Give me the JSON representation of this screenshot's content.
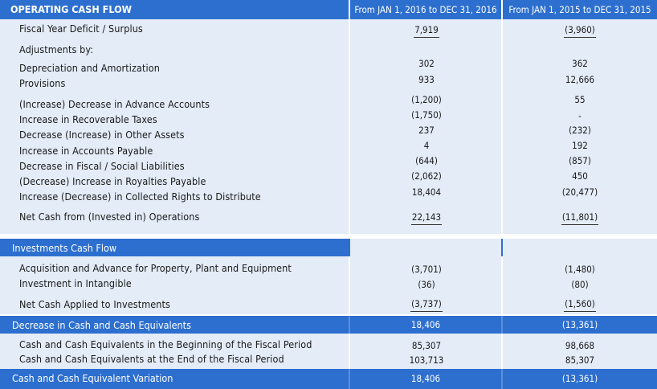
{
  "header": {
    "title": "OPERATING CASH FLOW",
    "col1": "From JAN 1, 2016 to DEC 31, 2016",
    "col2": "From JAN 1, 2015 to DEC 31, 2015"
  },
  "operating": {
    "deficit": {
      "label": "Fiscal Year Deficit / Surplus",
      "v2016": "7,919",
      "v2015": "(3,960)"
    },
    "adjustments_label": "Adjustments by:",
    "rows": [
      {
        "label": "Depreciation and Amortization",
        "v2016": "302",
        "v2015": "362"
      },
      {
        "label": "Provisions",
        "v2016": "933",
        "v2015": "12,666"
      },
      {
        "label": "(Increase) Decrease in Advance Accounts",
        "v2016": "(1,200)",
        "v2015": "55"
      },
      {
        "label": "Increase in Recoverable Taxes",
        "v2016": "(1,750)",
        "v2015": "-"
      },
      {
        "label": "Decrease (Increase) in Other Assets",
        "v2016": "237",
        "v2015": "(232)"
      },
      {
        "label": "Increase in Accounts Payable",
        "v2016": "4",
        "v2015": "192"
      },
      {
        "label": "Decrease in Fiscal / Social Liabilities",
        "v2016": "(644)",
        "v2015": "(857)"
      },
      {
        "label": "(Decrease) Increase in Royalties Payable",
        "v2016": "(2,062)",
        "v2015": "450"
      },
      {
        "label": "Increase (Decrease) in Collected Rights to Distribute",
        "v2016": "18,404",
        "v2015": "(20,477)"
      }
    ],
    "net": {
      "label": "Net Cash from (Invested in) Operations",
      "v2016": "22,143",
      "v2015": "(11,801)"
    }
  },
  "investments": {
    "title": "Investments Cash Flow",
    "rows": [
      {
        "label": "Acquisition and Advance for Property, Plant and Equipment",
        "v2016": "(3,701)",
        "v2015": "(1,480)"
      },
      {
        "label": "Investment in Intangible",
        "v2016": "(36)",
        "v2015": "(80)"
      }
    ],
    "net": {
      "label": "Net Cash Applied to Investments",
      "v2016": "(3,737)",
      "v2015": "(1,560)"
    }
  },
  "decrease": {
    "label": "Decrease in Cash and Cash Equivalents",
    "v2016": "18,406",
    "v2015": "(13,361)"
  },
  "balances": {
    "rows": [
      {
        "label": "Cash and Cash Equivalents in the Beginning of the Fiscal Period",
        "v2016": "85,307",
        "v2015": "98,668"
      },
      {
        "label": "Cash and Cash Equivalents at the End of the Fiscal Period",
        "v2016": "103,713",
        "v2015": "85,307"
      }
    ]
  },
  "variation": {
    "label": "Cash and Cash Equivalent Variation",
    "v2016": "18,406",
    "v2015": "(13,361)"
  },
  "colors": {
    "header_blue": "#2d6fcf",
    "light_band": "#e3ecf7",
    "light_band_alt": "#d3e2f4"
  }
}
